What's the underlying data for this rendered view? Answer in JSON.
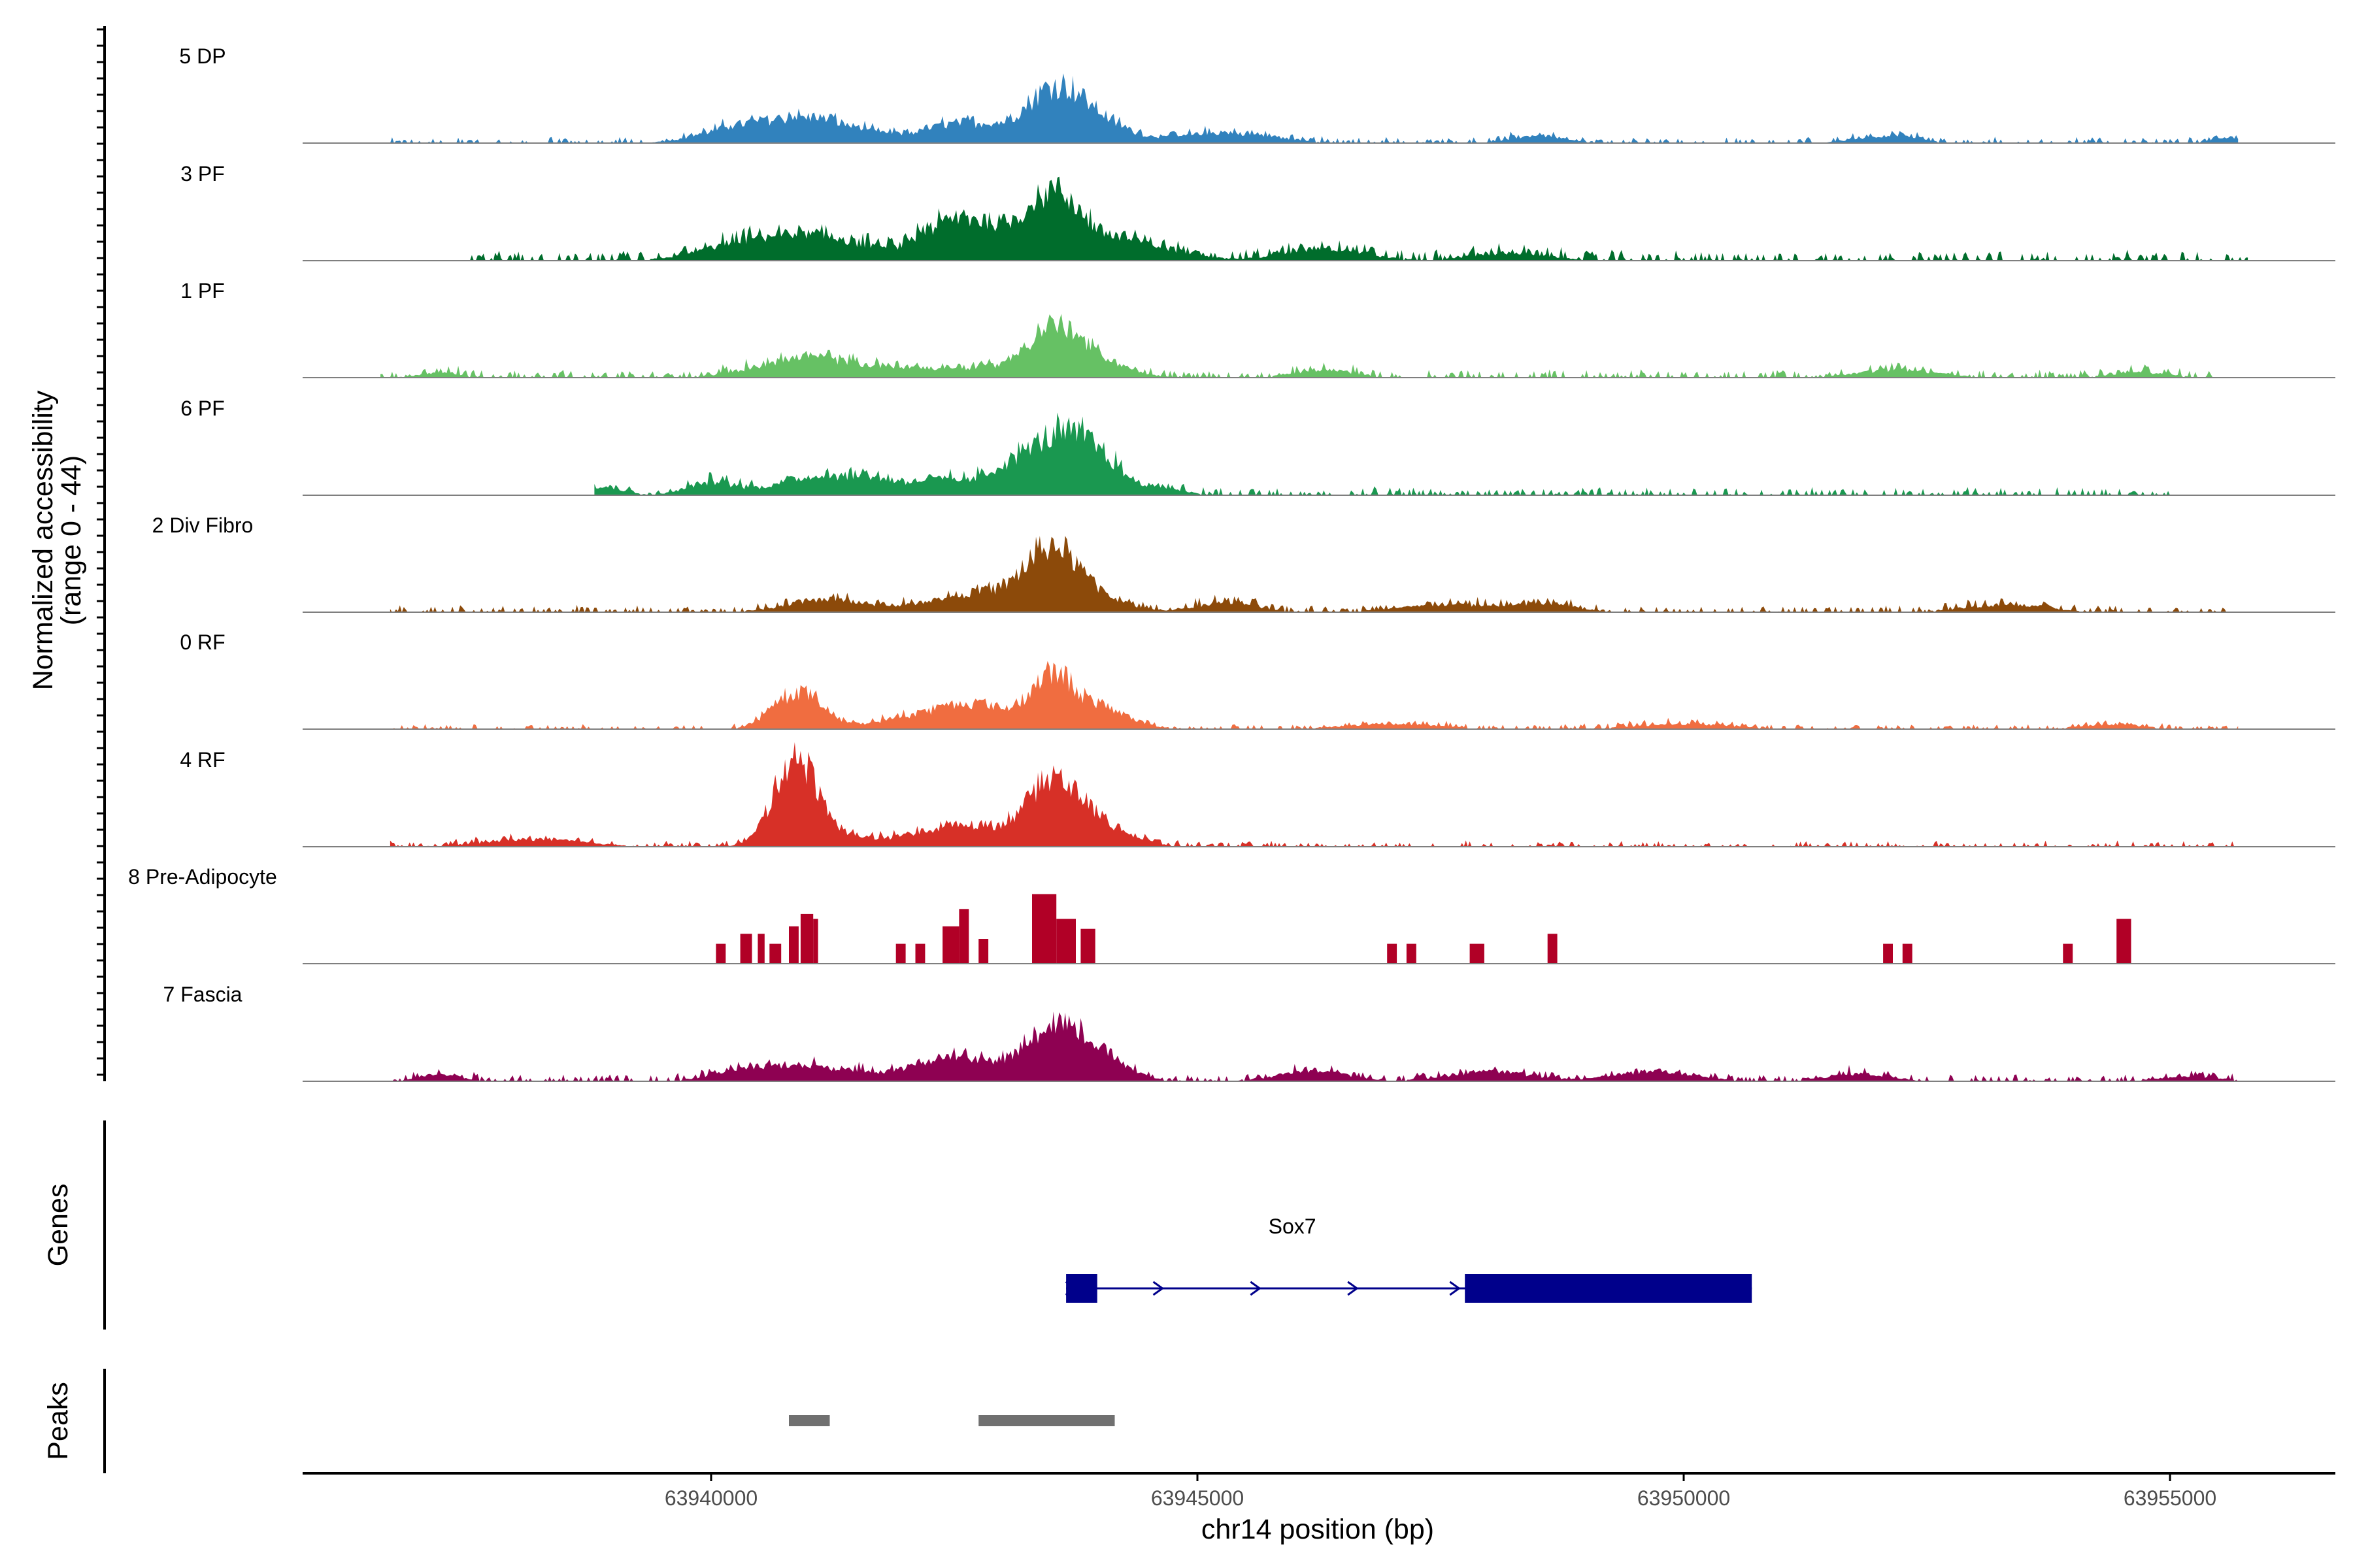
{
  "chart_data": {
    "type": "area",
    "title": "",
    "xlabel": "chr14 position (bp)",
    "ylabel": "Normalized accessibility",
    "ylabel_range": "(range 0 - 44)",
    "ylim": [
      0,
      44
    ],
    "xlim": [
      63935800,
      63956700
    ],
    "x_ticks": [
      63940000,
      63945000,
      63950000,
      63955000
    ],
    "x_tick_labels": [
      "63940000",
      "63945000",
      "63950000",
      "63955000"
    ],
    "grid": false,
    "tracks": [
      {
        "name": "5 DP",
        "color": "#3182bd",
        "peaks": [
          [
            63941000,
            10,
            500
          ],
          [
            63942600,
            8,
            400
          ],
          [
            63943500,
            16,
            280
          ],
          [
            63943850,
            10,
            350
          ],
          [
            63940200,
            4,
            350
          ],
          [
            63945300,
            4,
            500
          ],
          [
            63948500,
            3,
            250
          ],
          [
            63952100,
            3,
            300
          ],
          [
            63955600,
            2,
            150
          ]
        ],
        "noise": 1.2,
        "start": 63936700,
        "end": 63955700
      },
      {
        "name": "3 PF",
        "color": "#006d2c",
        "peaks": [
          [
            63941000,
            10,
            600
          ],
          [
            63942750,
            14,
            300
          ],
          [
            63942300,
            8,
            250
          ],
          [
            63943500,
            24,
            280
          ],
          [
            63944200,
            8,
            500
          ],
          [
            63946300,
            5,
            400
          ],
          [
            63948200,
            3,
            400
          ],
          [
            63940200,
            3,
            400
          ]
        ],
        "noise": 2.0,
        "start": 63937500,
        "end": 63955800
      },
      {
        "name": "1 PF",
        "color": "#66c164",
        "peaks": [
          [
            63941000,
            8,
            500
          ],
          [
            63942000,
            3,
            300
          ],
          [
            63943500,
            18,
            250
          ],
          [
            63943950,
            7,
            300
          ],
          [
            63942800,
            4,
            350
          ],
          [
            63946300,
            3,
            300
          ],
          [
            63952200,
            3,
            400
          ],
          [
            63954700,
            2,
            300
          ],
          [
            63937200,
            2,
            200
          ]
        ],
        "noise": 1.6,
        "start": 63936600,
        "end": 63955700
      },
      {
        "name": "6 PF",
        "color": "#1a9850",
        "peaks": [
          [
            63943500,
            20,
            300
          ],
          [
            63943000,
            7,
            250
          ],
          [
            63943950,
            14,
            250
          ],
          [
            63941000,
            7,
            350
          ],
          [
            63940000,
            5,
            250
          ],
          [
            63941600,
            6,
            250
          ],
          [
            63942300,
            6,
            300
          ],
          [
            63938900,
            3,
            200
          ],
          [
            63944600,
            3,
            250
          ]
        ],
        "noise": 1.6,
        "start": 63938800,
        "end": 63955000
      },
      {
        "name": "2 Div Fibro",
        "color": "#8c4a0a",
        "peaks": [
          [
            63943500,
            22,
            250
          ],
          [
            63942800,
            8,
            500
          ],
          [
            63941200,
            5,
            400
          ],
          [
            63943950,
            6,
            300
          ],
          [
            63945300,
            4,
            300
          ],
          [
            63947600,
            3,
            500
          ],
          [
            63948600,
            3,
            300
          ],
          [
            63953300,
            3,
            400
          ]
        ],
        "noise": 1.4,
        "start": 63936700,
        "end": 63955700
      },
      {
        "name": "0 RF",
        "color": "#f06d40",
        "peaks": [
          [
            63940900,
            15,
            250
          ],
          [
            63942700,
            10,
            350
          ],
          [
            63943500,
            20,
            220
          ],
          [
            63944000,
            8,
            300
          ],
          [
            63942000,
            4,
            350
          ],
          [
            63947000,
            2,
            500
          ],
          [
            63950000,
            2,
            500
          ],
          [
            63954400,
            2,
            300
          ]
        ],
        "noise": 1.0,
        "start": 63936700,
        "end": 63955700
      },
      {
        "name": "4 RF",
        "color": "#d73027",
        "peaks": [
          [
            63940850,
            28,
            200
          ],
          [
            63941000,
            10,
            300
          ],
          [
            63942700,
            8,
            400
          ],
          [
            63943500,
            22,
            250
          ],
          [
            63943900,
            10,
            350
          ],
          [
            63942000,
            3,
            400
          ],
          [
            63938200,
            3,
            500
          ]
        ],
        "noise": 1.2,
        "start": 63936700,
        "end": 63955700
      },
      {
        "name": "8 Pre-Adipocyte",
        "color": "#b10026",
        "blocks": [
          [
            63940050,
            63940150,
            8
          ],
          [
            63940300,
            63940420,
            12
          ],
          [
            63940480,
            63940550,
            12
          ],
          [
            63940600,
            63940720,
            8
          ],
          [
            63940800,
            63940900,
            15
          ],
          [
            63940920,
            63941050,
            20
          ],
          [
            63941050,
            63941100,
            18
          ],
          [
            63941900,
            63942000,
            8
          ],
          [
            63942100,
            63942200,
            8
          ],
          [
            63942380,
            63942550,
            15
          ],
          [
            63942550,
            63942650,
            22
          ],
          [
            63942750,
            63942850,
            10
          ],
          [
            63943300,
            63943550,
            28
          ],
          [
            63943550,
            63943750,
            18
          ],
          [
            63943800,
            63943950,
            14
          ],
          [
            63946950,
            63947050,
            8
          ],
          [
            63947150,
            63947250,
            8
          ],
          [
            63947800,
            63947950,
            8
          ],
          [
            63948600,
            63948700,
            12
          ],
          [
            63952050,
            63952150,
            8
          ],
          [
            63952250,
            63952350,
            8
          ],
          [
            63953900,
            63954000,
            8
          ],
          [
            63954450,
            63954600,
            18
          ]
        ]
      },
      {
        "name": "7 Fascia",
        "color": "#8e0152",
        "peaks": [
          [
            63943500,
            20,
            280
          ],
          [
            63943950,
            10,
            300
          ],
          [
            63942500,
            10,
            400
          ],
          [
            63941000,
            6,
            500
          ],
          [
            63940300,
            3,
            300
          ],
          [
            63946200,
            4,
            350
          ],
          [
            63948000,
            4,
            400
          ],
          [
            63949700,
            4,
            400
          ],
          [
            63951800,
            3,
            300
          ],
          [
            63955200,
            2,
            300
          ],
          [
            63937200,
            3,
            200
          ]
        ],
        "noise": 1.4,
        "start": 63936700,
        "end": 63955700
      }
    ]
  },
  "axes": {
    "y_title_line1": "Normalized accessibility",
    "y_title_line2": "(range 0 - 44)",
    "x_title": "chr14 position (bp)",
    "genes_title": "Genes",
    "peaks_title": "Peaks"
  },
  "genes": [
    {
      "name": "Sox7",
      "strand": "+",
      "start": 63943650,
      "end": 63950700,
      "exons": [
        [
          63943650,
          63943970
        ],
        [
          63947750,
          63950700
        ]
      ],
      "arrow_positions": [
        63943700,
        63944600,
        63945600,
        63946600,
        63947650
      ],
      "color": "#00008b"
    }
  ],
  "peak_regions": [
    {
      "start": 63940800,
      "end": 63941220
    },
    {
      "start": 63942750,
      "end": 63944150
    }
  ],
  "peak_color": "#707070",
  "baseline_color": "#7f7f7f"
}
